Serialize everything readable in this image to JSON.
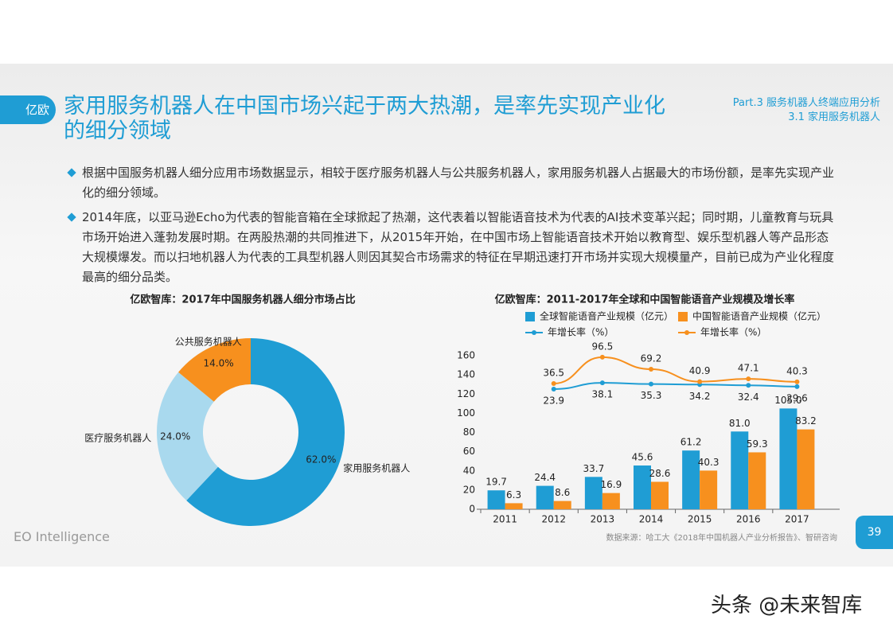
{
  "header": {
    "logo": "亿欧",
    "title": "家用服务机器人在中国市场兴起于两大热潮，是率先实现产业化的细分领域",
    "part": "Part.3 服务机器人终端应用分析",
    "section": "3.1 家用服务机器人"
  },
  "bullets": [
    "根据中国服务机器人细分应用市场数据显示，相较于医疗服务机器人与公共服务机器人，家用服务机器人占据最大的市场份额，是率先实现产业化的细分领域。",
    "2014年底，以亚马逊Echo为代表的智能音箱在全球掀起了热潮，这代表着以智能语音技术为代表的AI技术变革兴起；同时期，儿童教育与玩具市场开始进入蓬勃发展时期。在两股热潮的共同推进下，从2015年开始，在中国市场上智能语音技术开始以教育型、娱乐型机器人等产品形态大规模爆发。而以扫地机器人为代表的工具型机器人则因其契合市场需求的特征在早期迅速打开市场并实现大规模量产，目前已成为产业化程度最高的细分品类。"
  ],
  "chart_data": [
    {
      "type": "pie",
      "title": "亿欧智库：2017年中国服务机器人细分市场占比",
      "donut": true,
      "categories": [
        "家用服务机器人",
        "医疗服务机器人",
        "公共服务机器人"
      ],
      "values": [
        62,
        24,
        14
      ],
      "value_labels": [
        "62.0%",
        "24.0%",
        "14.0%"
      ],
      "colors": [
        "#1f9dd4",
        "#a9d9ee",
        "#f7901e"
      ]
    },
    {
      "type": "bar",
      "title": "亿欧智库：2011-2017年全球和中国智能语音产业规模及增长率",
      "categories": [
        "2011",
        "2012",
        "2013",
        "2014",
        "2015",
        "2016",
        "2017"
      ],
      "ylim": [
        0,
        160
      ],
      "yticks": [
        0,
        20,
        40,
        60,
        80,
        100,
        120,
        140,
        160
      ],
      "y2lim": [
        -250,
        100
      ],
      "series": [
        {
          "name": "全球智能语音产业规模（亿元）",
          "type": "bar",
          "color": "#1f9dd4",
          "values": [
            19.7,
            24.4,
            33.7,
            45.6,
            61.2,
            81.0,
            105.0
          ],
          "value_labels": [
            "19.7",
            "24.4",
            "33.7",
            "45.6",
            "61.2",
            "81.0",
            "105.0"
          ]
        },
        {
          "name": "中国智能语音产业规模（亿元）",
          "type": "bar",
          "color": "#f7901e",
          "values": [
            6.3,
            8.6,
            16.9,
            28.6,
            40.3,
            59.3,
            83.2
          ]
        },
        {
          "name": "年增长率（%）",
          "type": "line",
          "axis": "y2",
          "color": "#1f9dd4",
          "values": [
            null,
            23.9,
            38.1,
            35.3,
            34.2,
            32.4,
            29.6
          ]
        },
        {
          "name": "年增长率（%）",
          "type": "line",
          "axis": "y2",
          "color": "#f7901e",
          "values": [
            null,
            36.5,
            96.5,
            69.2,
            40.9,
            47.1,
            40.3
          ]
        }
      ]
    }
  ],
  "footer": {
    "brand": "EO Intelligence",
    "source": "数据来源：哈工大《2018年中国机器人产业分析报告》、智研咨询",
    "page": "39"
  },
  "watermark": "头条 @未来智库"
}
